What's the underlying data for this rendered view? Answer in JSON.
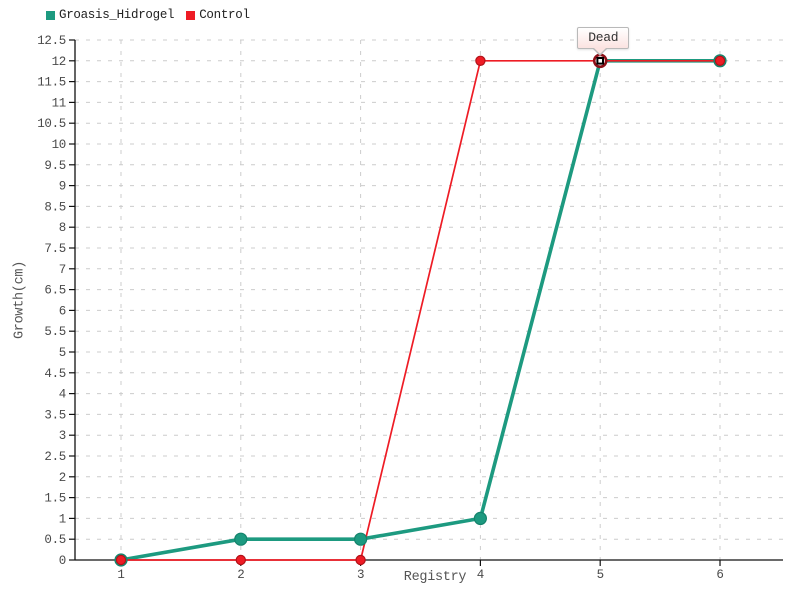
{
  "chart_data": {
    "type": "line",
    "title": "",
    "xlabel": "Registry",
    "ylabel": "Growth(cm)",
    "x": [
      1,
      2,
      3,
      4,
      5,
      6
    ],
    "x_tick_labels": [
      "1",
      "2",
      "3",
      "4",
      "5",
      "6"
    ],
    "series": [
      {
        "name": "Groasis_Hidrogel",
        "color": "#1d9a80",
        "dot_stroke": "#14836c",
        "values": [
          0,
          0.5,
          0.5,
          1,
          12,
          12
        ]
      },
      {
        "name": "Control",
        "color": "#ee1c25",
        "dot_stroke": "#b01218",
        "values": [
          0,
          0,
          0,
          12,
          12,
          12
        ]
      }
    ],
    "ylim": [
      0,
      12.5
    ],
    "ytick_step": 0.5,
    "grid": true,
    "legend_position": "top-left",
    "annotation": {
      "text": "Dead",
      "x": 5,
      "y": 12
    }
  },
  "colors": {
    "background": "#ffffff",
    "grid": "#cccccc",
    "axis": "#111111",
    "tick_label": "#4a4a4a",
    "axis_title": "#555555",
    "legend_text": "#222222",
    "tooltip_bg_top": "#ffffff",
    "tooltip_bg_bottom": "#fbe3e1",
    "tooltip_border": "#b9b9b9",
    "tooltip_text": "#333333",
    "active_dot_ring": "#8c1018",
    "active_dot_square": "#000000"
  }
}
